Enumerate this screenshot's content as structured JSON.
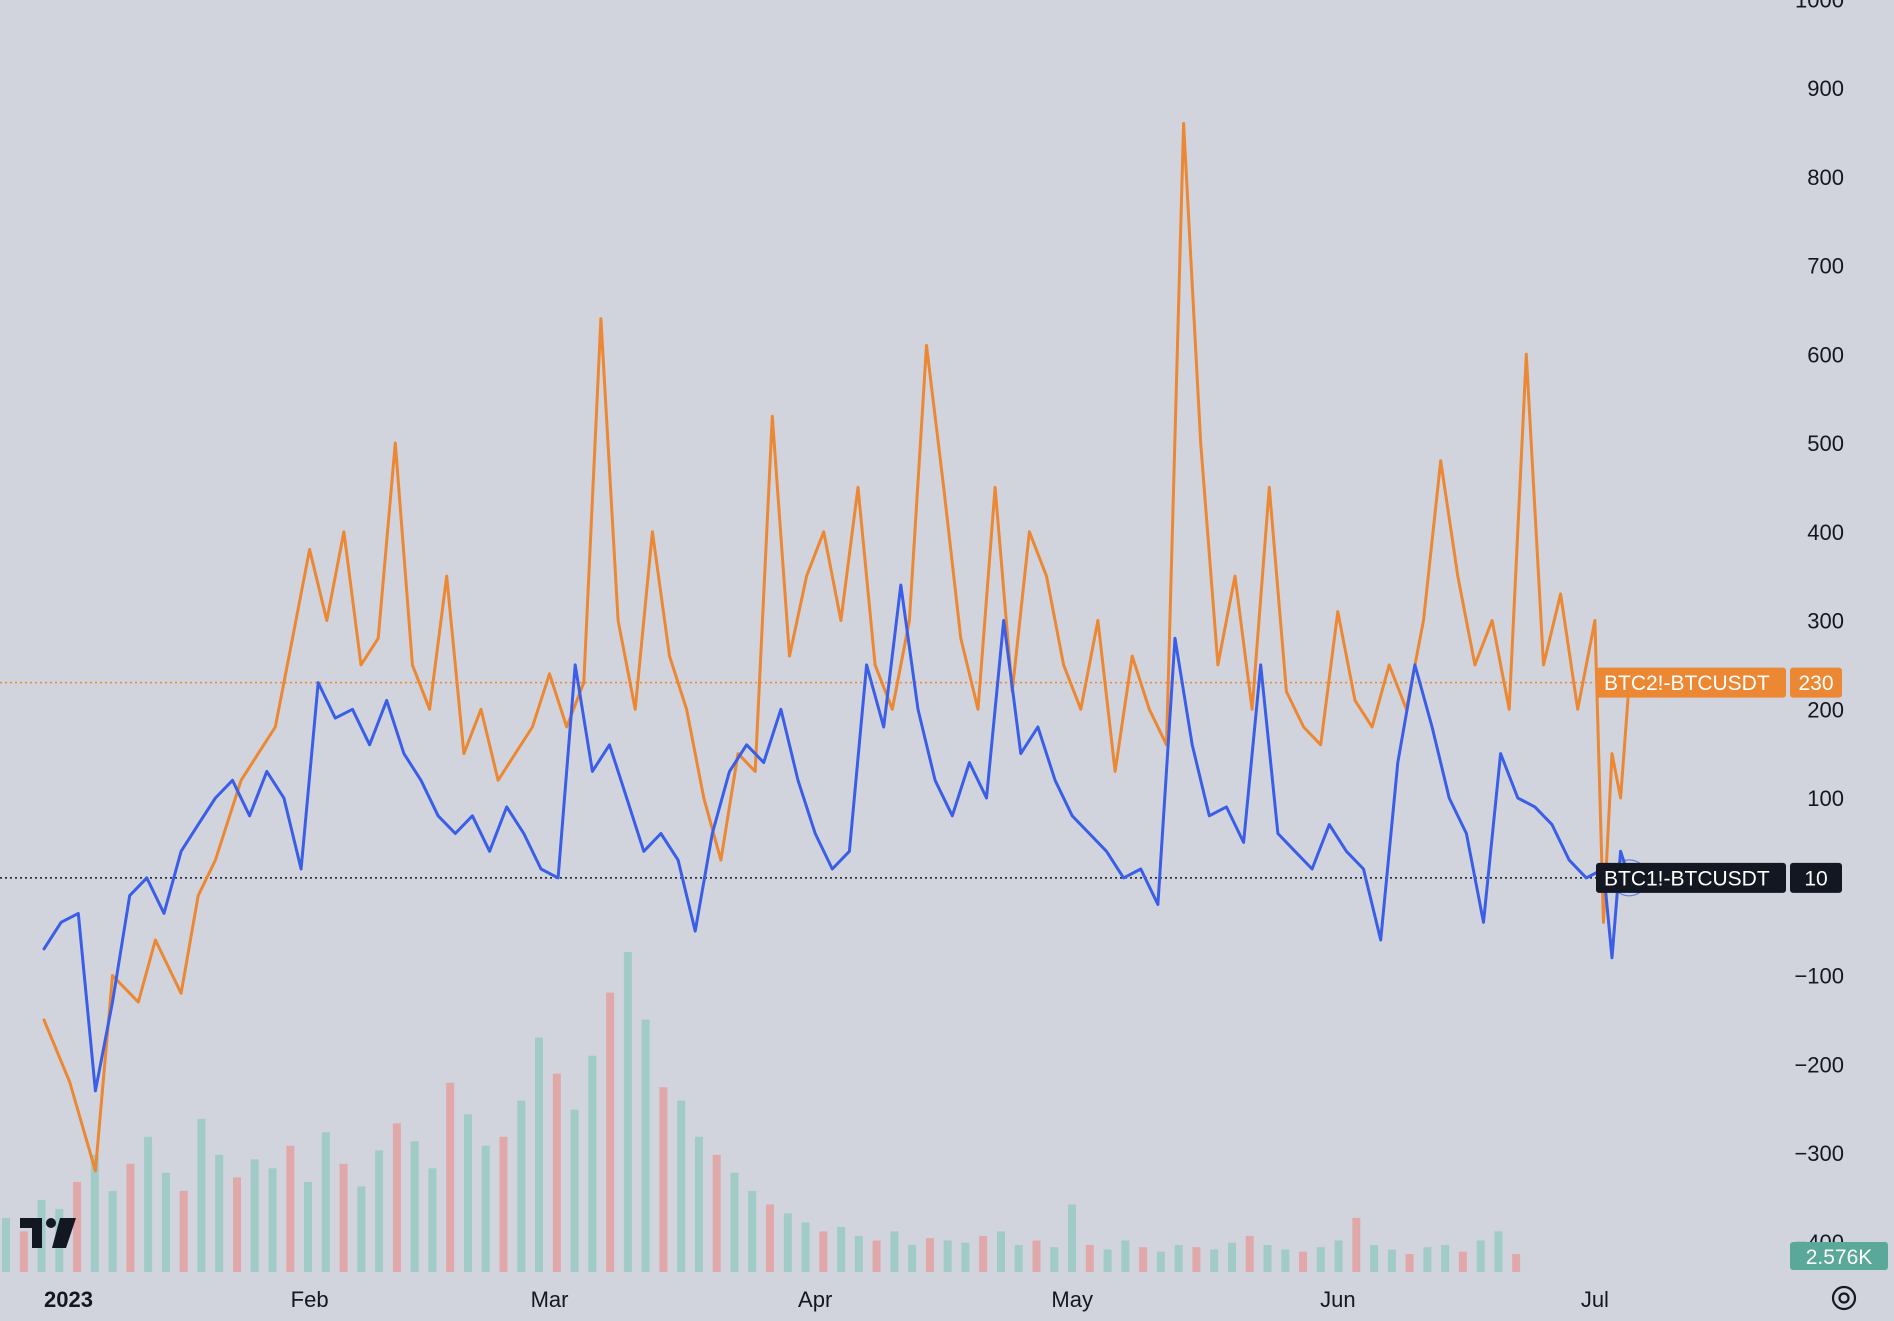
{
  "chart_data": {
    "type": "line",
    "title": "",
    "xlabel": "",
    "ylabel": "",
    "x_range": [
      "2023-01-01",
      "2023-07-10"
    ],
    "ylim": [
      -400,
      1000
    ],
    "y_ticks": [
      1000,
      900,
      800,
      700,
      600,
      500,
      400,
      300,
      200,
      100,
      -100,
      -200,
      -300,
      -400
    ],
    "x_ticks": [
      {
        "label": "2023",
        "date": "2023-01-01",
        "bold": true
      },
      {
        "label": "Feb",
        "date": "2023-02-01"
      },
      {
        "label": "Mar",
        "date": "2023-03-01"
      },
      {
        "label": "Apr",
        "date": "2023-04-01"
      },
      {
        "label": "May",
        "date": "2023-05-01"
      },
      {
        "label": "Jun",
        "date": "2023-06-01"
      },
      {
        "label": "Jul",
        "date": "2023-07-01"
      }
    ],
    "grid": false,
    "series": [
      {
        "name": "BTC2!-BTCUSDT",
        "color": "#ec8733",
        "last_value": "230",
        "points": [
          [
            "2023-01-01",
            -150
          ],
          [
            "2023-01-04",
            -220
          ],
          [
            "2023-01-07",
            -320
          ],
          [
            "2023-01-09",
            -100
          ],
          [
            "2023-01-12",
            -130
          ],
          [
            "2023-01-14",
            -60
          ],
          [
            "2023-01-17",
            -120
          ],
          [
            "2023-01-19",
            -10
          ],
          [
            "2023-01-21",
            30
          ],
          [
            "2023-01-24",
            120
          ],
          [
            "2023-01-26",
            150
          ],
          [
            "2023-01-28",
            180
          ],
          [
            "2023-01-30",
            280
          ],
          [
            "2023-02-01",
            380
          ],
          [
            "2023-02-03",
            300
          ],
          [
            "2023-02-05",
            400
          ],
          [
            "2023-02-07",
            250
          ],
          [
            "2023-02-09",
            280
          ],
          [
            "2023-02-11",
            500
          ],
          [
            "2023-02-13",
            250
          ],
          [
            "2023-02-15",
            200
          ],
          [
            "2023-02-17",
            350
          ],
          [
            "2023-02-19",
            150
          ],
          [
            "2023-02-21",
            200
          ],
          [
            "2023-02-23",
            120
          ],
          [
            "2023-02-25",
            150
          ],
          [
            "2023-02-27",
            180
          ],
          [
            "2023-03-01",
            240
          ],
          [
            "2023-03-03",
            180
          ],
          [
            "2023-03-05",
            230
          ],
          [
            "2023-03-07",
            640
          ],
          [
            "2023-03-09",
            300
          ],
          [
            "2023-03-11",
            200
          ],
          [
            "2023-03-13",
            400
          ],
          [
            "2023-03-15",
            260
          ],
          [
            "2023-03-17",
            200
          ],
          [
            "2023-03-19",
            100
          ],
          [
            "2023-03-21",
            30
          ],
          [
            "2023-03-23",
            150
          ],
          [
            "2023-03-25",
            130
          ],
          [
            "2023-03-27",
            530
          ],
          [
            "2023-03-29",
            260
          ],
          [
            "2023-03-31",
            350
          ],
          [
            "2023-04-02",
            400
          ],
          [
            "2023-04-04",
            300
          ],
          [
            "2023-04-06",
            450
          ],
          [
            "2023-04-08",
            250
          ],
          [
            "2023-04-10",
            200
          ],
          [
            "2023-04-12",
            300
          ],
          [
            "2023-04-14",
            610
          ],
          [
            "2023-04-16",
            450
          ],
          [
            "2023-04-18",
            280
          ],
          [
            "2023-04-20",
            200
          ],
          [
            "2023-04-22",
            450
          ],
          [
            "2023-04-24",
            220
          ],
          [
            "2023-04-26",
            400
          ],
          [
            "2023-04-28",
            350
          ],
          [
            "2023-04-30",
            250
          ],
          [
            "2023-05-02",
            200
          ],
          [
            "2023-05-04",
            300
          ],
          [
            "2023-05-06",
            130
          ],
          [
            "2023-05-08",
            260
          ],
          [
            "2023-05-10",
            200
          ],
          [
            "2023-05-12",
            160
          ],
          [
            "2023-05-14",
            860
          ],
          [
            "2023-05-16",
            500
          ],
          [
            "2023-05-18",
            250
          ],
          [
            "2023-05-20",
            350
          ],
          [
            "2023-05-22",
            200
          ],
          [
            "2023-05-24",
            450
          ],
          [
            "2023-05-26",
            220
          ],
          [
            "2023-05-28",
            180
          ],
          [
            "2023-05-30",
            160
          ],
          [
            "2023-06-01",
            310
          ],
          [
            "2023-06-03",
            210
          ],
          [
            "2023-06-05",
            180
          ],
          [
            "2023-06-07",
            250
          ],
          [
            "2023-06-09",
            200
          ],
          [
            "2023-06-11",
            300
          ],
          [
            "2023-06-13",
            480
          ],
          [
            "2023-06-15",
            350
          ],
          [
            "2023-06-17",
            250
          ],
          [
            "2023-06-19",
            300
          ],
          [
            "2023-06-21",
            200
          ],
          [
            "2023-06-23",
            600
          ],
          [
            "2023-06-25",
            250
          ],
          [
            "2023-06-27",
            330
          ],
          [
            "2023-06-29",
            200
          ],
          [
            "2023-07-01",
            300
          ],
          [
            "2023-07-02",
            -40
          ],
          [
            "2023-07-03",
            150
          ],
          [
            "2023-07-04",
            100
          ],
          [
            "2023-07-05",
            230
          ]
        ]
      },
      {
        "name": "BTC1!-BTCUSDT",
        "color": "#3a5ee8",
        "last_value": "10",
        "points": [
          [
            "2023-01-01",
            -70
          ],
          [
            "2023-01-03",
            -40
          ],
          [
            "2023-01-05",
            -30
          ],
          [
            "2023-01-07",
            -230
          ],
          [
            "2023-01-09",
            -130
          ],
          [
            "2023-01-11",
            -10
          ],
          [
            "2023-01-13",
            10
          ],
          [
            "2023-01-15",
            -30
          ],
          [
            "2023-01-17",
            40
          ],
          [
            "2023-01-19",
            70
          ],
          [
            "2023-01-21",
            100
          ],
          [
            "2023-01-23",
            120
          ],
          [
            "2023-01-25",
            80
          ],
          [
            "2023-01-27",
            130
          ],
          [
            "2023-01-29",
            100
          ],
          [
            "2023-01-31",
            20
          ],
          [
            "2023-02-02",
            230
          ],
          [
            "2023-02-04",
            190
          ],
          [
            "2023-02-06",
            200
          ],
          [
            "2023-02-08",
            160
          ],
          [
            "2023-02-10",
            210
          ],
          [
            "2023-02-12",
            150
          ],
          [
            "2023-02-14",
            120
          ],
          [
            "2023-02-16",
            80
          ],
          [
            "2023-02-18",
            60
          ],
          [
            "2023-02-20",
            80
          ],
          [
            "2023-02-22",
            40
          ],
          [
            "2023-02-24",
            90
          ],
          [
            "2023-02-26",
            60
          ],
          [
            "2023-02-28",
            20
          ],
          [
            "2023-03-02",
            10
          ],
          [
            "2023-03-04",
            250
          ],
          [
            "2023-03-06",
            130
          ],
          [
            "2023-03-08",
            160
          ],
          [
            "2023-03-10",
            100
          ],
          [
            "2023-03-12",
            40
          ],
          [
            "2023-03-14",
            60
          ],
          [
            "2023-03-16",
            30
          ],
          [
            "2023-03-18",
            -50
          ],
          [
            "2023-03-20",
            60
          ],
          [
            "2023-03-22",
            130
          ],
          [
            "2023-03-24",
            160
          ],
          [
            "2023-03-26",
            140
          ],
          [
            "2023-03-28",
            200
          ],
          [
            "2023-03-30",
            120
          ],
          [
            "2023-04-01",
            60
          ],
          [
            "2023-04-03",
            20
          ],
          [
            "2023-04-05",
            40
          ],
          [
            "2023-04-07",
            250
          ],
          [
            "2023-04-09",
            180
          ],
          [
            "2023-04-11",
            340
          ],
          [
            "2023-04-13",
            200
          ],
          [
            "2023-04-15",
            120
          ],
          [
            "2023-04-17",
            80
          ],
          [
            "2023-04-19",
            140
          ],
          [
            "2023-04-21",
            100
          ],
          [
            "2023-04-23",
            300
          ],
          [
            "2023-04-25",
            150
          ],
          [
            "2023-04-27",
            180
          ],
          [
            "2023-04-29",
            120
          ],
          [
            "2023-05-01",
            80
          ],
          [
            "2023-05-03",
            60
          ],
          [
            "2023-05-05",
            40
          ],
          [
            "2023-05-07",
            10
          ],
          [
            "2023-05-09",
            20
          ],
          [
            "2023-05-11",
            -20
          ],
          [
            "2023-05-13",
            280
          ],
          [
            "2023-05-15",
            160
          ],
          [
            "2023-05-17",
            80
          ],
          [
            "2023-05-19",
            90
          ],
          [
            "2023-05-21",
            50
          ],
          [
            "2023-05-23",
            250
          ],
          [
            "2023-05-25",
            60
          ],
          [
            "2023-05-27",
            40
          ],
          [
            "2023-05-29",
            20
          ],
          [
            "2023-05-31",
            70
          ],
          [
            "2023-06-02",
            40
          ],
          [
            "2023-06-04",
            20
          ],
          [
            "2023-06-06",
            -60
          ],
          [
            "2023-06-08",
            140
          ],
          [
            "2023-06-10",
            250
          ],
          [
            "2023-06-12",
            180
          ],
          [
            "2023-06-14",
            100
          ],
          [
            "2023-06-16",
            60
          ],
          [
            "2023-06-18",
            -40
          ],
          [
            "2023-06-20",
            150
          ],
          [
            "2023-06-22",
            100
          ],
          [
            "2023-06-24",
            90
          ],
          [
            "2023-06-26",
            70
          ],
          [
            "2023-06-28",
            30
          ],
          [
            "2023-06-30",
            10
          ],
          [
            "2023-07-02",
            20
          ],
          [
            "2023-07-03",
            -80
          ],
          [
            "2023-07-04",
            40
          ],
          [
            "2023-07-05",
            10
          ]
        ]
      }
    ],
    "price_lines": [
      {
        "series": "BTC2!-BTCUSDT",
        "value": 230,
        "label": "BTC2!-BTCUSDT",
        "value_label": "230",
        "color": "#ec8733",
        "style": "dotted"
      },
      {
        "series": "BTC1!-BTCUSDT",
        "value": 10,
        "label": "BTC1!-BTCUSDT",
        "value_label": "10",
        "color": "#131722",
        "style": "dotted"
      }
    ],
    "volume_badge": {
      "text": "2.576K",
      "color": "#5aa89a"
    },
    "volume": {
      "up_color": "#8fc8c0",
      "down_color": "#e59a9a",
      "values": [
        120,
        90,
        160,
        140,
        200,
        260,
        180,
        240,
        300,
        220,
        180,
        340,
        260,
        210,
        250,
        230,
        280,
        200,
        310,
        240,
        190,
        270,
        330,
        290,
        230,
        420,
        350,
        280,
        300,
        380,
        520,
        440,
        360,
        480,
        620,
        710,
        560,
        410,
        380,
        300,
        260,
        220,
        180,
        150,
        130,
        110,
        90,
        100,
        80,
        70,
        90,
        60,
        75,
        70,
        65,
        80,
        90,
        60,
        70,
        55,
        150,
        60,
        50,
        70,
        55,
        45,
        60,
        55,
        50,
        65,
        80,
        60,
        50,
        45,
        55,
        70,
        120,
        60,
        50,
        40,
        55,
        60,
        45,
        70,
        90,
        40
      ]
    }
  },
  "branding": {
    "logo": "TV",
    "logo_name": "tradingview-logo"
  },
  "controls": {
    "settings_icon": "gear-icon"
  }
}
